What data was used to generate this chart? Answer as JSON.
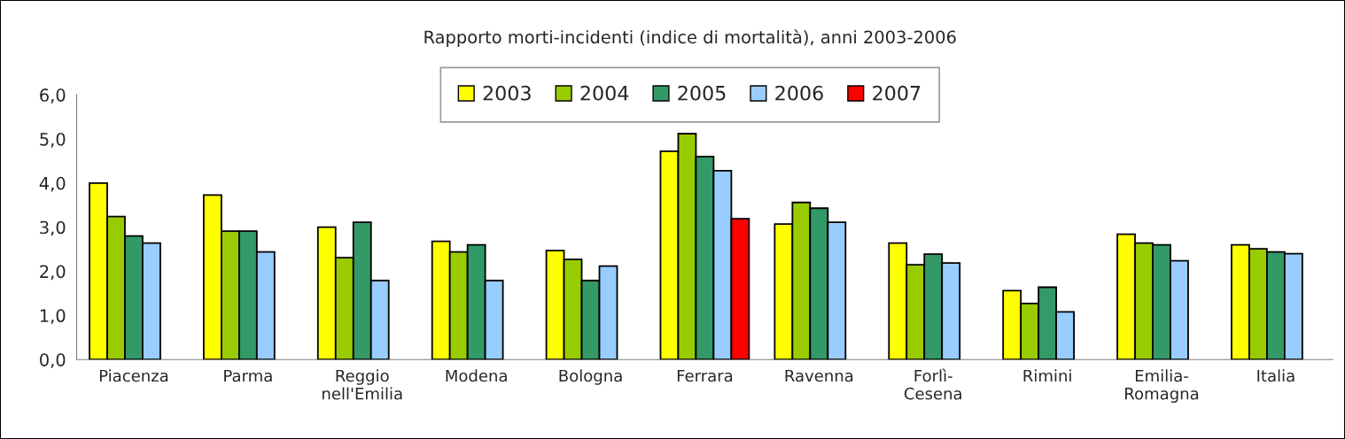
{
  "chart_data": {
    "type": "bar",
    "title": "Rapporto morti-incidenti (indice di mortalità), anni 2003-2006",
    "categories": [
      "Piacenza",
      "Parma",
      "Reggio\nnell'Emilia",
      "Modena",
      "Bologna",
      "Ferrara",
      "Ravenna",
      "Forlì-\nCesena",
      "Rimini",
      "Emilia-\nRomagna",
      "Italia"
    ],
    "series": [
      {
        "name": "2003",
        "color": "#ffff00",
        "values": [
          4.0,
          3.73,
          3.0,
          2.68,
          2.47,
          4.72,
          3.07,
          2.64,
          1.56,
          2.84,
          2.6
        ]
      },
      {
        "name": "2004",
        "color": "#99cc00",
        "values": [
          3.24,
          2.91,
          2.31,
          2.44,
          2.27,
          5.12,
          3.56,
          2.15,
          1.27,
          2.64,
          2.51
        ]
      },
      {
        "name": "2005",
        "color": "#339966",
        "values": [
          2.8,
          2.91,
          3.11,
          2.6,
          1.79,
          4.6,
          3.43,
          2.39,
          1.64,
          2.6,
          2.44
        ]
      },
      {
        "name": "2006",
        "color": "#99ccff",
        "values": [
          2.64,
          2.44,
          1.79,
          1.79,
          2.12,
          4.28,
          3.11,
          2.19,
          1.08,
          2.24,
          2.4
        ]
      },
      {
        "name": "2007",
        "color": "#ff0000",
        "values": [
          null,
          null,
          null,
          null,
          null,
          3.19,
          null,
          null,
          null,
          null,
          null
        ]
      }
    ],
    "ylim": [
      0,
      6
    ],
    "yticks": [
      {
        "value": 0,
        "label": "0,0"
      },
      {
        "value": 1,
        "label": "1,0"
      },
      {
        "value": 2,
        "label": "2,0"
      },
      {
        "value": 3,
        "label": "3,0"
      },
      {
        "value": 4,
        "label": "4,0"
      },
      {
        "value": 5,
        "label": "5,0"
      },
      {
        "value": 6,
        "label": "6,0"
      }
    ],
    "grid": false,
    "legend": "top"
  }
}
